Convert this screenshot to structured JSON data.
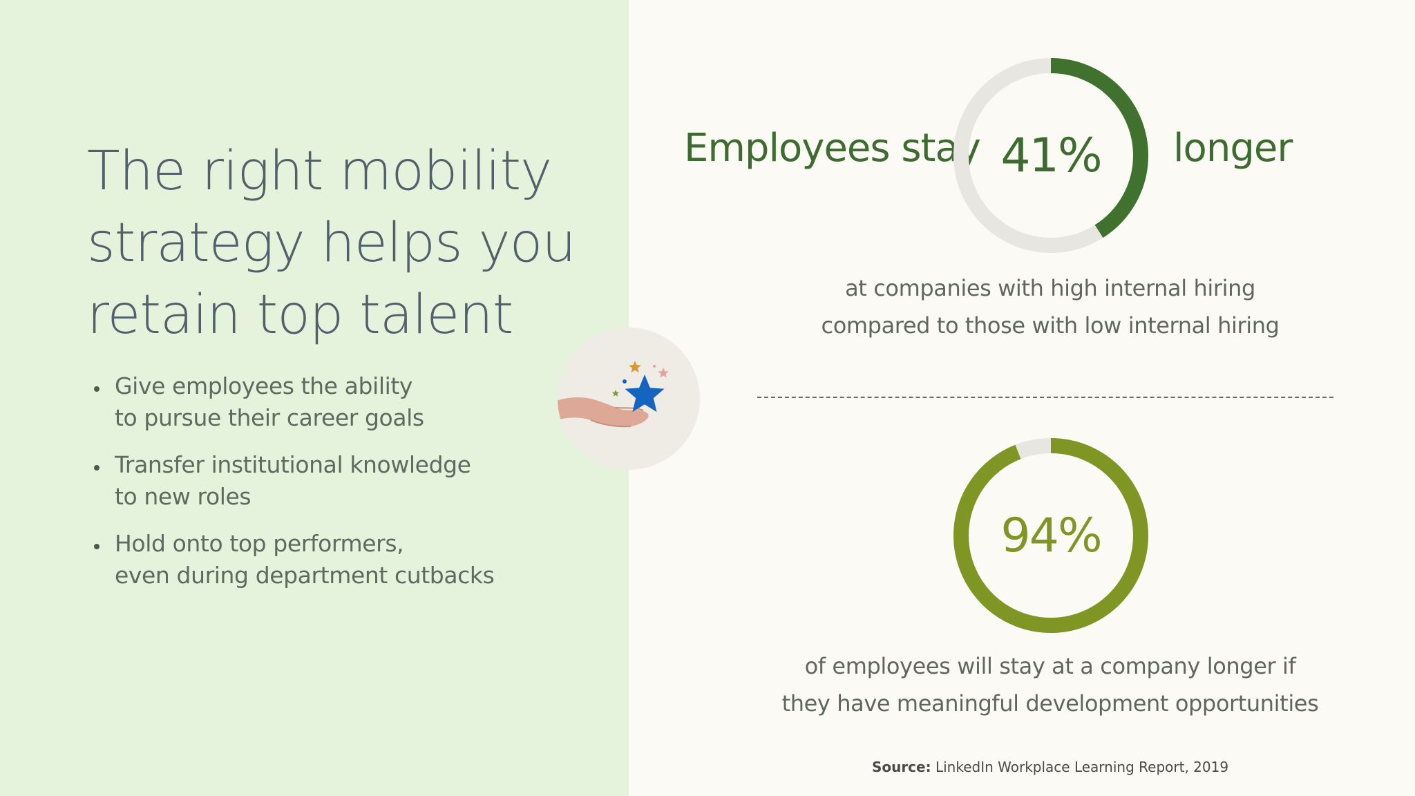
{
  "headline": {
    "lines": [
      "The right mobility",
      "strategy helps you",
      "retain top talent"
    ]
  },
  "bullets": [
    {
      "lines": [
        "Give employees the ability",
        "to pursue their career goals"
      ]
    },
    {
      "lines": [
        "Transfer institutional knowledge",
        "to new roles"
      ]
    },
    {
      "lines": [
        "Hold onto top performers,",
        "even during department cutbacks"
      ]
    }
  ],
  "chart_data": [
    {
      "type": "pie",
      "title": "",
      "value": 41,
      "display": "41%",
      "prefix": "Employees stay",
      "suffix": "longer",
      "caption": [
        "at companies with high internal hiring",
        "compared to those with low internal hiring"
      ],
      "color": "#40712f",
      "track_color": "#e8e6e1"
    },
    {
      "type": "pie",
      "title": "",
      "value": 94,
      "display": "94%",
      "caption": [
        "of employees will stay at a company longer if",
        "they have meaningful development opportunities"
      ],
      "color": "#809624",
      "track_color": "#e8e6e1"
    }
  ],
  "source": {
    "label": "Source:",
    "text": "LinkedIn Workplace Learning Report, 2019"
  },
  "colors": {
    "left_bg": "#e5f2dc",
    "right_bg": "#fcfaf4",
    "headline": "#51606a",
    "star": "#1565c0"
  },
  "icons": [
    "hand-with-stars-icon"
  ]
}
